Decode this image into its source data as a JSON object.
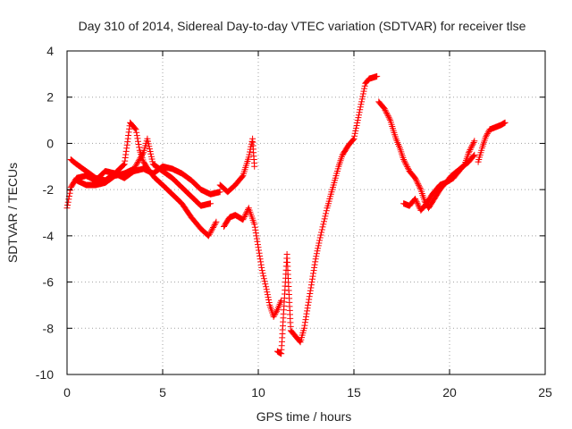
{
  "chart_data": {
    "type": "scatter",
    "title": "Day 310 of 2014, Sidereal Day-to-day VTEC variation (SDTVAR) for receiver tlse",
    "xlabel": "GPS time / hours",
    "ylabel": "SDTVAR / TECUs",
    "xlim": [
      0,
      25
    ],
    "ylim": [
      -10,
      4
    ],
    "xticks": [
      0,
      5,
      10,
      15,
      20,
      25
    ],
    "yticks": [
      -10,
      -8,
      -6,
      -4,
      -2,
      0,
      2,
      4
    ],
    "grid": true,
    "marker": "+",
    "colors": {
      "series": "#ff0000",
      "grid": "#a0a0a0",
      "axis": "#000000"
    },
    "series": [
      {
        "name": "sat-trace-1",
        "points": [
          [
            0,
            -2.8
          ],
          [
            0.2,
            -1.9
          ],
          [
            0.5,
            -1.5
          ],
          [
            1,
            -1.4
          ],
          [
            1.5,
            -1.6
          ],
          [
            2,
            -1.2
          ],
          [
            2.5,
            -1.3
          ],
          [
            3,
            -1.5
          ],
          [
            3.5,
            -1.2
          ],
          [
            4,
            -1.1
          ],
          [
            4.5,
            -1.3
          ],
          [
            5,
            -1.0
          ],
          [
            5.5,
            -1.1
          ],
          [
            6,
            -1.3
          ],
          [
            6.5,
            -1.6
          ],
          [
            7,
            -2.0
          ],
          [
            7.5,
            -2.2
          ],
          [
            8,
            -2.1
          ]
        ]
      },
      {
        "name": "sat-trace-2",
        "points": [
          [
            0.2,
            -0.7
          ],
          [
            0.5,
            -0.9
          ],
          [
            1,
            -1.2
          ],
          [
            1.5,
            -1.5
          ],
          [
            2,
            -1.6
          ],
          [
            2.5,
            -1.3
          ],
          [
            3,
            -0.9
          ],
          [
            3.3,
            0.9
          ],
          [
            3.6,
            0.6
          ],
          [
            3.8,
            -0.3
          ],
          [
            4,
            -0.8
          ],
          [
            4.3,
            -1.2
          ],
          [
            4.6,
            -1.5
          ],
          [
            5,
            -1.8
          ],
          [
            5.5,
            -2.2
          ],
          [
            6,
            -2.6
          ],
          [
            6.5,
            -3.2
          ],
          [
            7,
            -3.7
          ],
          [
            7.4,
            -4.0
          ],
          [
            7.8,
            -3.4
          ]
        ]
      },
      {
        "name": "sat-trace-3",
        "points": [
          [
            0.5,
            -1.6
          ],
          [
            1,
            -1.8
          ],
          [
            1.5,
            -1.8
          ],
          [
            2,
            -1.7
          ],
          [
            2.5,
            -1.4
          ],
          [
            3,
            -1.3
          ],
          [
            3.5,
            -1.1
          ],
          [
            4,
            -0.4
          ],
          [
            4.2,
            0.2
          ],
          [
            4.5,
            -0.9
          ],
          [
            5,
            -1.2
          ],
          [
            5.5,
            -1.5
          ],
          [
            6,
            -1.9
          ],
          [
            6.5,
            -2.3
          ],
          [
            7,
            -2.7
          ],
          [
            7.5,
            -2.6
          ]
        ]
      },
      {
        "name": "sat-trace-4",
        "points": [
          [
            8,
            -1.8
          ],
          [
            8.4,
            -2.1
          ],
          [
            8.8,
            -1.8
          ],
          [
            9.2,
            -1.4
          ],
          [
            9.5,
            -0.6
          ],
          [
            9.7,
            0.2
          ],
          [
            9.8,
            -1.0
          ]
        ]
      },
      {
        "name": "sat-trace-5",
        "points": [
          [
            8.2,
            -3.6
          ],
          [
            8.5,
            -3.2
          ],
          [
            8.8,
            -3.1
          ],
          [
            9.2,
            -3.3
          ],
          [
            9.5,
            -2.8
          ],
          [
            9.8,
            -3.5
          ],
          [
            10,
            -4.5
          ],
          [
            10.2,
            -5.5
          ],
          [
            10.4,
            -6.2
          ],
          [
            10.6,
            -7.0
          ],
          [
            10.8,
            -7.5
          ],
          [
            11,
            -7.2
          ],
          [
            11.2,
            -6.8
          ]
        ]
      },
      {
        "name": "sat-trace-6",
        "points": [
          [
            11,
            -9.0
          ],
          [
            11.2,
            -9.1
          ],
          [
            11.5,
            -4.8
          ],
          [
            11.7,
            -8.1
          ],
          [
            11.9,
            -8.3
          ],
          [
            12.2,
            -8.6
          ],
          [
            12.4,
            -8.0
          ],
          [
            12.6,
            -7.0
          ],
          [
            12.8,
            -6.0
          ],
          [
            13,
            -5.0
          ],
          [
            13.2,
            -4.2
          ],
          [
            13.4,
            -3.5
          ],
          [
            13.6,
            -2.8
          ],
          [
            13.8,
            -2.2
          ],
          [
            14,
            -1.6
          ],
          [
            14.2,
            -1.0
          ],
          [
            14.4,
            -0.5
          ],
          [
            14.7,
            -0.1
          ],
          [
            15,
            0.2
          ],
          [
            15.2,
            1.0
          ],
          [
            15.4,
            1.8
          ],
          [
            15.6,
            2.6
          ],
          [
            15.8,
            2.8
          ],
          [
            16.2,
            2.9
          ]
        ]
      },
      {
        "name": "sat-trace-7",
        "points": [
          [
            16.3,
            1.8
          ],
          [
            16.6,
            1.5
          ],
          [
            16.9,
            1.0
          ],
          [
            17.2,
            0.2
          ],
          [
            17.4,
            -0.2
          ],
          [
            17.6,
            -0.7
          ],
          [
            17.9,
            -1.2
          ],
          [
            18.2,
            -1.5
          ],
          [
            18.5,
            -2.0
          ],
          [
            18.7,
            -2.5
          ],
          [
            18.9,
            -2.8
          ],
          [
            19.2,
            -2.4
          ],
          [
            19.5,
            -2.0
          ],
          [
            19.8,
            -1.7
          ],
          [
            20.2,
            -1.5
          ],
          [
            20.5,
            -1.2
          ],
          [
            20.8,
            -0.9
          ],
          [
            21,
            -0.4
          ],
          [
            21.3,
            0.1
          ]
        ]
      },
      {
        "name": "sat-trace-8",
        "points": [
          [
            17.6,
            -2.6
          ],
          [
            17.9,
            -2.7
          ],
          [
            18.2,
            -2.4
          ],
          [
            18.5,
            -2.9
          ],
          [
            18.8,
            -2.6
          ],
          [
            19.1,
            -2.2
          ],
          [
            19.5,
            -1.8
          ],
          [
            19.8,
            -1.7
          ],
          [
            20.1,
            -1.4
          ],
          [
            20.4,
            -1.2
          ],
          [
            20.7,
            -1.0
          ],
          [
            21,
            -0.8
          ],
          [
            21.3,
            -0.5
          ]
        ]
      },
      {
        "name": "sat-trace-9",
        "points": [
          [
            21.5,
            -0.8
          ],
          [
            21.7,
            -0.2
          ],
          [
            21.9,
            0.3
          ],
          [
            22.1,
            0.6
          ],
          [
            22.4,
            0.7
          ],
          [
            22.7,
            0.8
          ],
          [
            22.9,
            0.9
          ]
        ]
      }
    ]
  }
}
